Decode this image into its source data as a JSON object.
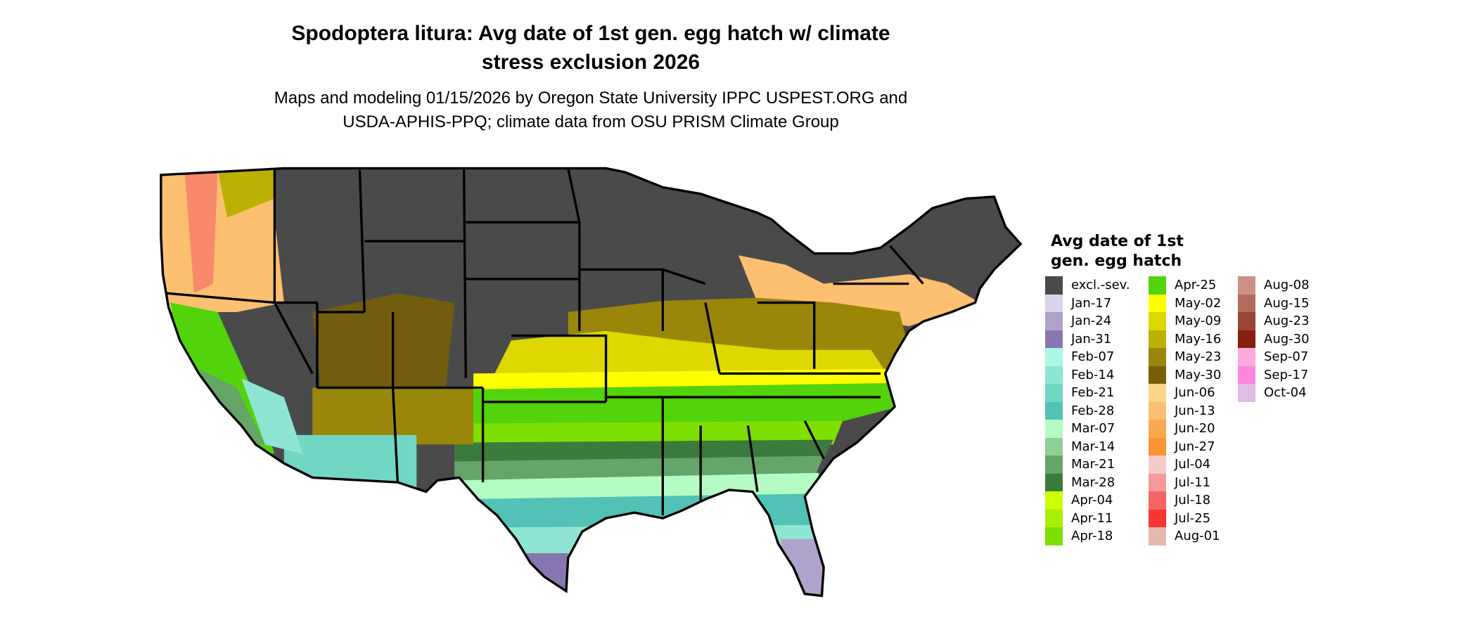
{
  "title_line1": "Spodoptera litura: Avg date of 1st gen. egg hatch w/ climate",
  "title_line2": "stress exclusion 2026",
  "subtitle_line1": "Maps and modeling 01/15/2026 by Oregon State University IPPC USPEST.ORG and",
  "subtitle_line2": "USDA-APHIS-PPQ; climate data from OSU PRISM Climate Group",
  "legend": {
    "title_line1": "Avg date of 1st",
    "title_line2": "gen. egg hatch",
    "columns": [
      [
        {
          "label": "excl.-sev.",
          "color": "#4a4a4a"
        },
        {
          "label": "Jan-17",
          "color": "#dbd3eb"
        },
        {
          "label": "Jan-24",
          "color": "#afa2cb"
        },
        {
          "label": "Jan-31",
          "color": "#8876b0"
        },
        {
          "label": "Feb-07",
          "color": "#aaf7e5"
        },
        {
          "label": "Feb-14",
          "color": "#8fe5d3"
        },
        {
          "label": "Feb-21",
          "color": "#72d6c5"
        },
        {
          "label": "Feb-28",
          "color": "#52c2b6"
        },
        {
          "label": "Mar-07",
          "color": "#b5fcc4"
        },
        {
          "label": "Mar-14",
          "color": "#8ecf93"
        },
        {
          "label": "Mar-21",
          "color": "#65a568"
        },
        {
          "label": "Mar-28",
          "color": "#3c7b3e"
        },
        {
          "label": "Apr-04",
          "color": "#ccff00"
        },
        {
          "label": "Apr-11",
          "color": "#a8ef00"
        },
        {
          "label": "Apr-18",
          "color": "#7fe000"
        }
      ],
      [
        {
          "label": "Apr-25",
          "color": "#52d30b"
        },
        {
          "label": "May-02",
          "color": "#ffff00"
        },
        {
          "label": "May-09",
          "color": "#ded800"
        },
        {
          "label": "May-16",
          "color": "#bcb005"
        },
        {
          "label": "May-23",
          "color": "#9a8608"
        },
        {
          "label": "May-30",
          "color": "#775e08"
        },
        {
          "label": "Jun-06",
          "color": "#fed68a"
        },
        {
          "label": "Jun-13",
          "color": "#fdbf70"
        },
        {
          "label": "Jun-20",
          "color": "#fca752"
        },
        {
          "label": "Jun-27",
          "color": "#fb9432"
        },
        {
          "label": "Jul-04",
          "color": "#f4cccc"
        },
        {
          "label": "Jul-11",
          "color": "#f59999"
        },
        {
          "label": "Jul-18",
          "color": "#f66565"
        },
        {
          "label": "Jul-25",
          "color": "#fb3434"
        },
        {
          "label": "Aug-01",
          "color": "#e6b8ae"
        }
      ],
      [
        {
          "label": "Aug-08",
          "color": "#cc9184"
        },
        {
          "label": "Aug-15",
          "color": "#b36b5c"
        },
        {
          "label": "Aug-23",
          "color": "#9a4536"
        },
        {
          "label": "Aug-30",
          "color": "#85200c"
        },
        {
          "label": "Sep-07",
          "color": "#ffaadd"
        },
        {
          "label": "Sep-17",
          "color": "#ff85e0"
        },
        {
          "label": "Oct-04",
          "color": "#e0bde5"
        }
      ]
    ]
  }
}
